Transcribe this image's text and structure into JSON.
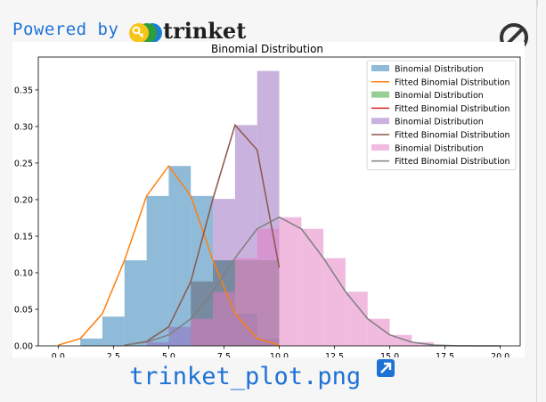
{
  "header": {
    "powered_text": "Powered by",
    "brand_name": "trinket",
    "logo_icon": "trinket-logo-icon",
    "blocked_icon": "no-entry-icon"
  },
  "footer": {
    "filename": "trinket_plot.png",
    "open_icon": "external-link-icon"
  },
  "colors": {
    "link_blue": "#1e72d6",
    "blue": "#1f77b4",
    "orange": "#ff7f0e",
    "green": "#2ca02c",
    "red": "#d62728",
    "purple": "#9467bd",
    "brown": "#8c564b",
    "pink": "#e377c2",
    "gray": "#7f7f7f"
  },
  "chart_data": {
    "type": "bar",
    "title": "Binomial Distribution",
    "xlabel": "",
    "ylabel": "",
    "xlim": [
      -0.9,
      20.9
    ],
    "ylim": [
      0,
      0.395
    ],
    "xticks": [
      0.0,
      2.5,
      5.0,
      7.5,
      10.0,
      12.5,
      15.0,
      17.5,
      20.0
    ],
    "xtick_labels": [
      "0.0",
      "2.5",
      "5.0",
      "7.5",
      "10.0",
      "12.5",
      "15.0",
      "17.5",
      "20.0"
    ],
    "yticks": [
      0.0,
      0.05,
      0.1,
      0.15,
      0.2,
      0.25,
      0.3,
      0.35
    ],
    "ytick_labels": [
      "0.00",
      "0.05",
      "0.10",
      "0.15",
      "0.20",
      "0.25",
      "0.30",
      "0.35"
    ],
    "grid": false,
    "legend_position": "top-right",
    "legend": [
      {
        "label": "Binomial Distribution",
        "kind": "patch",
        "color": "#1f77b4"
      },
      {
        "label": "Fitted Binomial Distribution",
        "kind": "line",
        "color": "#ff7f0e"
      },
      {
        "label": "Binomial Distribution",
        "kind": "patch",
        "color": "#2ca02c"
      },
      {
        "label": "Fitted Binomial Distribution",
        "kind": "line",
        "color": "#d62728"
      },
      {
        "label": "Binomial Distribution",
        "kind": "patch",
        "color": "#9467bd"
      },
      {
        "label": "Fitted Binomial Distribution",
        "kind": "line",
        "color": "#8c564b"
      },
      {
        "label": "Binomial Distribution",
        "kind": "patch",
        "color": "#e377c2"
      },
      {
        "label": "Fitted Binomial Distribution",
        "kind": "line",
        "color": "#7f7f7f"
      }
    ],
    "histograms": [
      {
        "color": "#1f77b4",
        "bins": [
          [
            1,
            2,
            0.01
          ],
          [
            2,
            3,
            0.04
          ],
          [
            3,
            4,
            0.117
          ],
          [
            4,
            5,
            0.205
          ],
          [
            5,
            6,
            0.246
          ],
          [
            6,
            7,
            0.205
          ],
          [
            7,
            8,
            0.117
          ],
          [
            8,
            9,
            0.044
          ],
          [
            9,
            10,
            0.01
          ]
        ]
      },
      {
        "color": "#2ca02c",
        "bins": [
          [
            6,
            7,
            0.088
          ],
          [
            7,
            8,
            0.117
          ],
          [
            8,
            9,
            0.117
          ],
          [
            9,
            10,
            0.117
          ]
        ]
      },
      {
        "color": "#9467bd",
        "bins": [
          [
            4,
            5,
            0.005
          ],
          [
            5,
            6,
            0.026
          ],
          [
            6,
            7,
            0.088
          ],
          [
            7,
            8,
            0.201
          ],
          [
            8,
            9,
            0.302
          ],
          [
            9,
            10,
            0.376
          ]
        ]
      },
      {
        "color": "#e377c2",
        "bins": [
          [
            6,
            7,
            0.037
          ],
          [
            7,
            8,
            0.074
          ],
          [
            8,
            9,
            0.12
          ],
          [
            9,
            10,
            0.16
          ],
          [
            10,
            11,
            0.176
          ],
          [
            11,
            12,
            0.16
          ],
          [
            12,
            13,
            0.12
          ],
          [
            13,
            14,
            0.074
          ],
          [
            14,
            15,
            0.037
          ],
          [
            15,
            16,
            0.015
          ],
          [
            16,
            17,
            0.005
          ],
          [
            17,
            18,
            0.001
          ]
        ]
      }
    ],
    "lines": [
      {
        "color": "#ff7f0e",
        "x": [
          0,
          1,
          2,
          3,
          4,
          5,
          6,
          7,
          8,
          9,
          10
        ],
        "y": [
          0.001,
          0.01,
          0.044,
          0.117,
          0.205,
          0.246,
          0.205,
          0.117,
          0.044,
          0.01,
          0.001
        ]
      },
      {
        "color": "#8c564b",
        "x": [
          3,
          4,
          5,
          6,
          7,
          8,
          9,
          10
        ],
        "y": [
          0.001,
          0.006,
          0.026,
          0.088,
          0.201,
          0.302,
          0.268,
          0.107
        ]
      },
      {
        "color": "#7f7f7f",
        "x": [
          3,
          4,
          5,
          6,
          7,
          8,
          9,
          10,
          11,
          12,
          13,
          14,
          15,
          16,
          17,
          18,
          19,
          20
        ],
        "y": [
          0.001,
          0.005,
          0.015,
          0.037,
          0.074,
          0.12,
          0.16,
          0.176,
          0.16,
          0.12,
          0.074,
          0.037,
          0.015,
          0.005,
          0.001,
          0.0002,
          0.0,
          0.0
        ]
      }
    ]
  }
}
